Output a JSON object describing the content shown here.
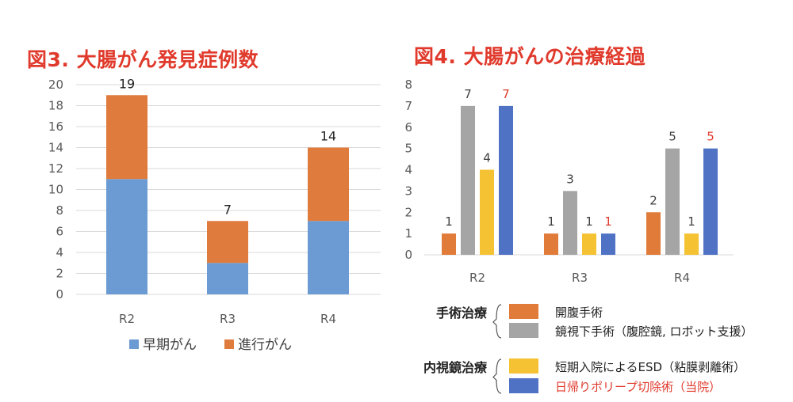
{
  "colors": {
    "early": "#6b9bd2",
    "advanced": "#df7b3c",
    "open": "#e07b39",
    "laparo": "#a5a5a5",
    "esd": "#f5c233",
    "polyp": "#4f72c4",
    "title": "#e03a2c",
    "highlight": "#e03a2c",
    "axis_text": "#595959",
    "grid": "#d9d9d9"
  },
  "chart_data": [
    {
      "type": "bar",
      "stacked": true,
      "title": "図3. 大腸がん発見症例数",
      "categories": [
        "R2",
        "R3",
        "R4"
      ],
      "series": [
        {
          "name": "早期がん",
          "values": [
            11,
            3,
            7
          ]
        },
        {
          "name": "進行がん",
          "values": [
            8,
            4,
            7
          ]
        }
      ],
      "totals": [
        19,
        7,
        14
      ],
      "ylim": [
        0,
        20
      ],
      "yticks": [
        0,
        2,
        4,
        6,
        8,
        10,
        12,
        14,
        16,
        18,
        20
      ],
      "xlabel": "",
      "ylabel": "",
      "legend": [
        "早期がん",
        "進行がん"
      ],
      "legend_position": "bottom"
    },
    {
      "type": "bar",
      "title": "図4. 大腸がんの治療経過",
      "categories": [
        "R2",
        "R3",
        "R4"
      ],
      "series": [
        {
          "name": "開腹手術",
          "values": [
            1,
            1,
            2
          ]
        },
        {
          "name": "鏡視下手術（腹腔鏡, ロボット支援）",
          "values": [
            7,
            3,
            5
          ]
        },
        {
          "name": "短期入院によるESD（粘膜剥離術）",
          "values": [
            4,
            1,
            1
          ]
        },
        {
          "name": "日帰りポリープ切除術（当院）",
          "values": [
            7,
            1,
            5
          ]
        }
      ],
      "ylim": [
        0,
        8
      ],
      "yticks": [
        0,
        1,
        2,
        3,
        4,
        5,
        6,
        7,
        8
      ],
      "xlabel": "",
      "ylabel": "",
      "legend_groups": [
        {
          "label": "手術治療",
          "items": [
            "開腹手術",
            "鏡視下手術（腹腔鏡, ロボット支援）"
          ]
        },
        {
          "label": "内視鏡治療",
          "items": [
            "短期入院によるESD（粘膜剥離術）",
            "日帰りポリープ切除術（当院）"
          ]
        }
      ],
      "legend_position": "bottom"
    }
  ]
}
